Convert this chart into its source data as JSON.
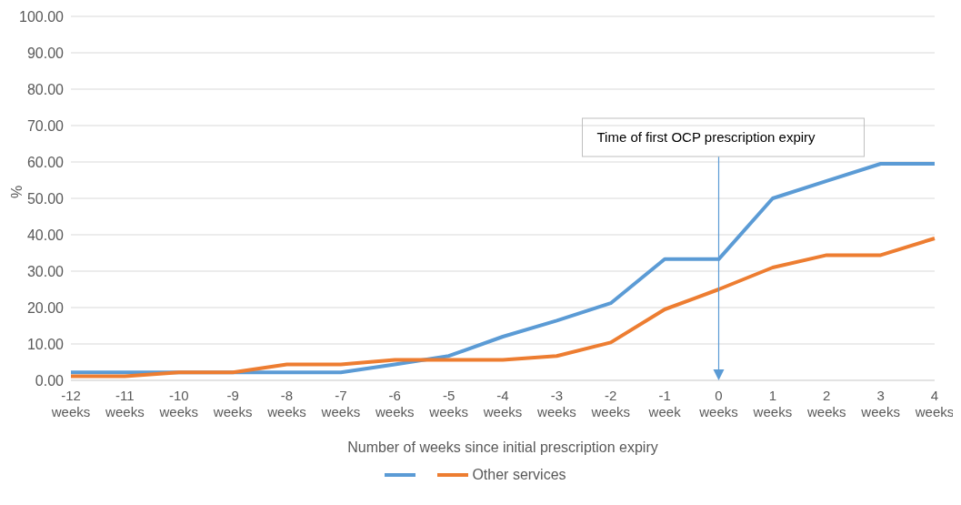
{
  "chart_data": {
    "type": "line",
    "ylabel": "%",
    "xlabel": "Number of weeks since initial prescription expiry",
    "categories": [
      "-12 weeks",
      "-11 weeks",
      "-10 weeks",
      "-9 weeks",
      "-8 weeks",
      "-7 weeks",
      "-6 weeks",
      "-5 weeks",
      "-4 weeks",
      "-3 weeks",
      "-2 weeks",
      "-1 week",
      "0 weeks",
      "1 weeks",
      "2 weeks",
      "3 weeks",
      "4 weeks"
    ],
    "series": [
      {
        "color": "#5b9bd5",
        "values": [
          2.2,
          2.2,
          2.2,
          2.2,
          2.2,
          2.2,
          4.4,
          6.7,
          12,
          16.4,
          21.2,
          33.3,
          33.3,
          50,
          54.8,
          59.5,
          59.5
        ]
      },
      {
        "name": "Other services",
        "color": "#ed7d31",
        "values": [
          1.1,
          1.1,
          2.2,
          2.2,
          4.4,
          4.4,
          5.6,
          5.6,
          5.6,
          6.7,
          10.4,
          19.5,
          25,
          31,
          34.4,
          34.4,
          39
        ]
      }
    ],
    "ylim": [
      0,
      100
    ],
    "yticks": [
      {
        "value": 0,
        "label": "0.00"
      },
      {
        "value": 10,
        "label": "10.00"
      },
      {
        "value": 20,
        "label": "20.00"
      },
      {
        "value": 30,
        "label": "30.00"
      },
      {
        "value": 40,
        "label": "40.00"
      },
      {
        "value": 50,
        "label": "50.00"
      },
      {
        "value": 60,
        "label": "60.00"
      },
      {
        "value": 70,
        "label": "70.00"
      },
      {
        "value": 80,
        "label": "80.00"
      },
      {
        "value": 90,
        "label": "90.00"
      },
      {
        "value": 100,
        "label": "100.00"
      }
    ],
    "grid": "y",
    "legend": "bottom",
    "marker": "none",
    "line_style": "solid",
    "ref_lines": [
      {
        "axis": "x",
        "value": "0 weeks",
        "label": "Time of first OCP prescription expiry",
        "color": "#5b9bd5"
      }
    ]
  }
}
